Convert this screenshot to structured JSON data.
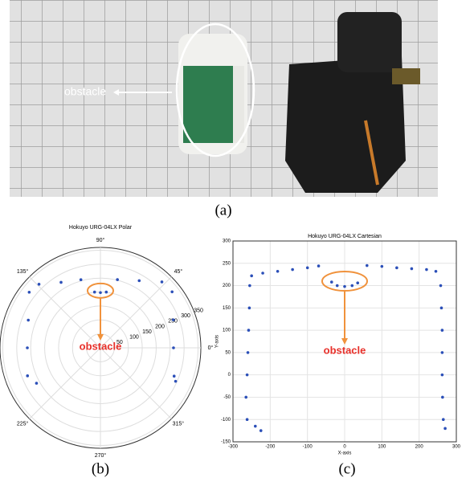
{
  "photo": {
    "annotation": "obstacle",
    "caption": "(a)"
  },
  "chart_data": [
    {
      "type": "polar",
      "title": "Hokuyo URG-04LX Polar",
      "caption": "(b)",
      "annotation": "obstacle",
      "color": "#2b4fb8",
      "rlim": [
        0,
        360
      ],
      "rticks": [
        50,
        100,
        150,
        200,
        250,
        300,
        350
      ],
      "thetaticks": [
        {
          "value": 0,
          "label": "0°"
        },
        {
          "value": 45,
          "label": "45°"
        },
        {
          "value": 90,
          "label": "90°"
        },
        {
          "value": 135,
          "label": "135°"
        },
        {
          "value": 225,
          "label": "225°"
        },
        {
          "value": 270,
          "label": "270°"
        },
        {
          "value": 315,
          "label": "315°"
        }
      ],
      "series": [
        {
          "theta": [
            201,
            180,
            159,
            142,
            134,
            121,
            106,
            96,
            90,
            84,
            76,
            60,
            47,
            38,
            21,
            0,
            339,
            209,
            336
          ],
          "r": [
            280,
            262,
            277,
            324,
            317,
            274,
            254,
            201,
            198,
            201,
            252,
            278,
            323,
            326,
            280,
            262,
            283,
            262,
            295
          ]
        }
      ]
    },
    {
      "type": "scatter",
      "title": "Hokuyo URG-04LX Cartesian",
      "caption": "(c)",
      "annotation": "obstacle",
      "color": "#2b4fb8",
      "xlabel": "X-axis",
      "ylabel": "Y-axis",
      "grid": true,
      "xlim": [
        -300,
        300
      ],
      "ylim": [
        -150,
        300
      ],
      "xticks": [
        -300,
        -200,
        -100,
        0,
        100,
        200,
        300
      ],
      "yticks": [
        -150,
        -100,
        -50,
        0,
        50,
        100,
        150,
        200,
        250,
        300
      ],
      "series": [
        {
          "x": [
            -262,
            -265,
            -262,
            -260,
            -258,
            -256,
            -255,
            -250,
            -220,
            -180,
            -140,
            -100,
            -70,
            -35,
            -20,
            0,
            20,
            35,
            60,
            100,
            140,
            180,
            220,
            245,
            258,
            260,
            262,
            262,
            262,
            263,
            265,
            -240,
            -225,
            270
          ],
          "y": [
            -100,
            -50,
            0,
            50,
            100,
            150,
            200,
            222,
            228,
            232,
            236,
            240,
            244,
            208,
            200,
            198,
            200,
            206,
            245,
            243,
            240,
            238,
            236,
            232,
            200,
            150,
            100,
            50,
            0,
            -50,
            -100,
            -115,
            -125,
            -120
          ]
        }
      ]
    }
  ]
}
